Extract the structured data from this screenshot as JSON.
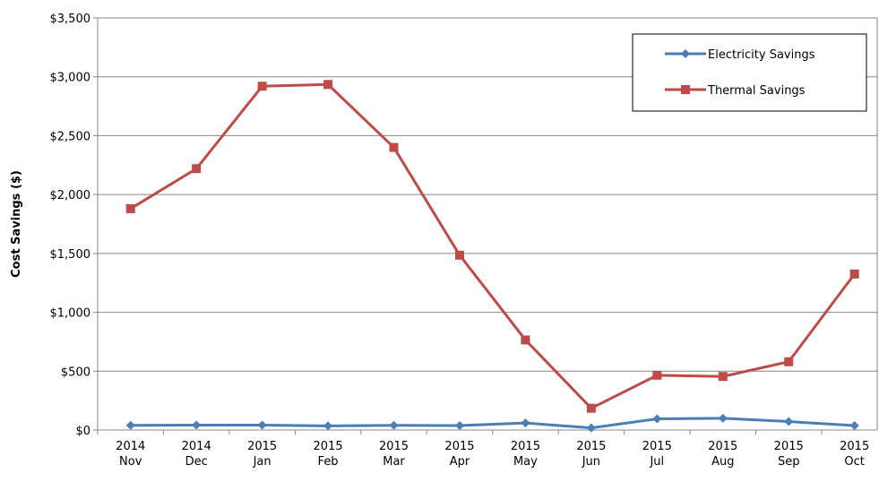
{
  "chart_data": {
    "type": "line",
    "y_label": "Cost Savings ($)",
    "categories": [
      [
        "2014",
        "Nov"
      ],
      [
        "2014",
        "Dec"
      ],
      [
        "2015",
        "Jan"
      ],
      [
        "2015",
        "Feb"
      ],
      [
        "2015",
        "Mar"
      ],
      [
        "2015",
        "Apr"
      ],
      [
        "2015",
        "May"
      ],
      [
        "2015",
        "Jun"
      ],
      [
        "2015",
        "Jul"
      ],
      [
        "2015",
        "Aug"
      ],
      [
        "2015",
        "Sep"
      ],
      [
        "2015",
        "Oct"
      ]
    ],
    "series": [
      {
        "name": "Electricity Savings",
        "color": "#4a7ebb",
        "marker": "diamond",
        "values": [
          40,
          42,
          42,
          35,
          40,
          38,
          60,
          18,
          95,
          100,
          72,
          38
        ]
      },
      {
        "name": "Thermal Savings",
        "color": "#be4b48",
        "marker": "square",
        "values": [
          1880,
          2220,
          2920,
          2935,
          2400,
          1485,
          765,
          185,
          465,
          455,
          580,
          1325
        ]
      }
    ],
    "ylim": [
      0,
      3500
    ],
    "yticks": [
      {
        "value": 0,
        "label": "$0"
      },
      {
        "value": 500,
        "label": "$500"
      },
      {
        "value": 1000,
        "label": "$1,000"
      },
      {
        "value": 1500,
        "label": "$1,500"
      },
      {
        "value": 2000,
        "label": "$2,000"
      },
      {
        "value": 2500,
        "label": "$2,500"
      },
      {
        "value": 3000,
        "label": "$3,000"
      },
      {
        "value": 3500,
        "label": "$3,500"
      }
    ],
    "grid": true,
    "legend": "top-right"
  }
}
